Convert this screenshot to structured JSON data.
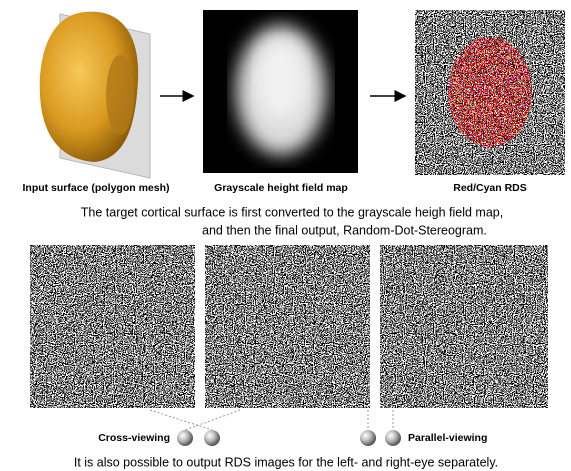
{
  "panels": {
    "input": "Input surface (polygon mesh)",
    "height_map": "Grayscale height field map",
    "rds": "Red/Cyan RDS"
  },
  "caption": [
    "The target cortical surface is first converted to the grayscale heigh field map,",
    "and then the final output, Random-Dot-Stereogram."
  ],
  "viewing": {
    "cross": "Cross-viewing",
    "parallel": "Parallel-viewing"
  },
  "footer": "It is also possible to output RDS images for the left- and right-eye separately."
}
